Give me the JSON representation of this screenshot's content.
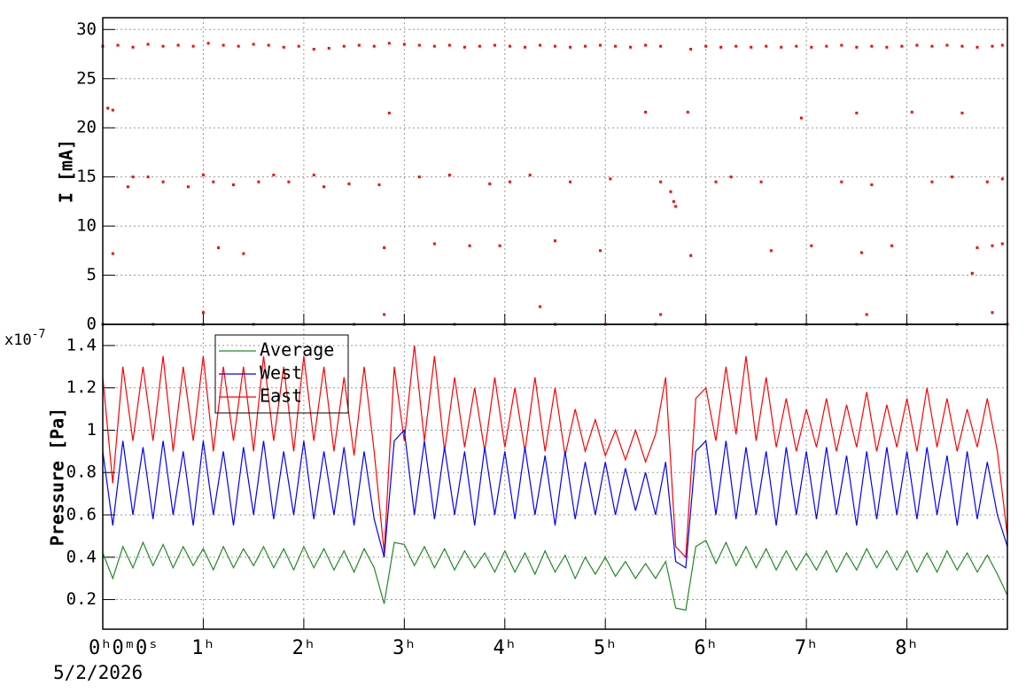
{
  "chart_data": [
    {
      "type": "scatter",
      "ylabel": "I [mA]",
      "xlim": [
        0,
        9
      ],
      "ylim": [
        0,
        31.2
      ],
      "xticks": [
        0,
        1,
        2,
        3,
        4,
        5,
        6,
        7,
        8
      ],
      "yticks": [
        0,
        5,
        10,
        15,
        20,
        25,
        30
      ],
      "grid": true,
      "series": [
        {
          "color": "#ff0000",
          "x": [
            0,
            0.15,
            0.3,
            0.45,
            0.6,
            0.75,
            0.9,
            1.05,
            1.2,
            1.35,
            1.5,
            1.65,
            1.8,
            1.95,
            2.1,
            2.25,
            2.4,
            2.55,
            2.7,
            2.85,
            3,
            3.15,
            3.3,
            3.45,
            3.6,
            3.75,
            3.9,
            4.05,
            4.2,
            4.35,
            4.5,
            4.65,
            4.8,
            4.95,
            5.1,
            5.25,
            5.4,
            5.55,
            5.85,
            6,
            6.15,
            6.3,
            6.45,
            6.6,
            6.75,
            6.9,
            7.05,
            7.2,
            7.35,
            7.5,
            7.65,
            7.8,
            7.95,
            8.1,
            8.25,
            8.4,
            8.55,
            8.7,
            8.85,
            8.95
          ],
          "values": [
            28.3,
            28.4,
            28.2,
            28.5,
            28.3,
            28.4,
            28.3,
            28.6,
            28.4,
            28.3,
            28.5,
            28.4,
            28.2,
            28.3,
            28.0,
            28.1,
            28.3,
            28.4,
            28.3,
            28.6,
            28.5,
            28.4,
            28.3,
            28.4,
            28.2,
            28.3,
            28.4,
            28.3,
            28.2,
            28.4,
            28.3,
            28.2,
            28.3,
            28.4,
            28.3,
            28.2,
            28.4,
            28.3,
            28.0,
            28.3,
            28.2,
            28.3,
            28.2,
            28.3,
            28.2,
            28.3,
            28.2,
            28.3,
            28.4,
            28.2,
            28.3,
            28.2,
            28.3,
            28.4,
            28.3,
            28.4,
            28.3,
            28.2,
            28.3,
            28.4
          ]
        },
        {
          "color": "#ff0000",
          "x": [
            0.05,
            0.1,
            0.1,
            0.25,
            0.3,
            0.45,
            0.6,
            0.85,
            1.0,
            1.1,
            1.15,
            1.3,
            1.4,
            1.55,
            1.7,
            1.85,
            2.1,
            2.2,
            2.45,
            2.75,
            2.8,
            2.85,
            3.15,
            3.3,
            3.45,
            3.65,
            3.85,
            3.95,
            4.05,
            4.25,
            4.5,
            4.65,
            4.95,
            5.05,
            5.4,
            5.55,
            5.65,
            5.68,
            5.7,
            5.82,
            5.85,
            6.1,
            6.25,
            6.55,
            6.65,
            6.95,
            7.05,
            7.35,
            7.5,
            7.55,
            7.65,
            7.85,
            8.05,
            8.25,
            8.45,
            8.55,
            8.65,
            8.7,
            8.8,
            8.85,
            8.95,
            8.95,
            1.0,
            2.8,
            4.35,
            5.55,
            7.6,
            8.85
          ],
          "values": [
            22,
            21.8,
            7.2,
            14,
            15,
            15,
            14.5,
            14,
            15.2,
            14.5,
            7.8,
            14.2,
            7.2,
            14.5,
            15.2,
            14.5,
            15.2,
            14,
            14.3,
            14.2,
            7.8,
            21.5,
            15,
            8.2,
            15.2,
            8,
            14.3,
            8,
            14.5,
            15.2,
            8.5,
            14.5,
            7.5,
            14.8,
            21.6,
            14.5,
            13.5,
            12.5,
            12,
            21.6,
            7,
            14.5,
            15,
            14.5,
            7.5,
            21,
            8,
            14.5,
            21.5,
            7.3,
            14.2,
            8,
            21.6,
            14.5,
            15,
            21.5,
            5.2,
            7.8,
            14.5,
            8,
            8.2,
            14.8,
            1.2,
            1,
            1.8,
            1,
            1,
            1.2
          ]
        },
        {
          "color": "#ff0000",
          "x": [
            0,
            0.5,
            1,
            1.5,
            2,
            2.5,
            3,
            3.5,
            4,
            4.5,
            5,
            5.5,
            6,
            6.5,
            7,
            7.5,
            8,
            8.5,
            9
          ],
          "values": [
            0,
            0,
            0,
            0,
            0,
            0,
            0,
            0,
            0,
            0,
            0,
            0,
            0,
            0,
            0,
            0,
            0,
            0,
            0
          ]
        }
      ]
    },
    {
      "type": "line",
      "ylabel": "Pressure [Pa]",
      "y_multiplier": {
        "base": "x10",
        "exponent": "-7"
      },
      "x_date": "5/2/2026",
      "xlim": [
        0,
        9
      ],
      "ylim": [
        0.06,
        1.5
      ],
      "xticks": [
        {
          "value": 0,
          "label": "0ʰ0ᵐ0ˢ"
        },
        {
          "value": 1,
          "label": "1ʰ"
        },
        {
          "value": 2,
          "label": "2ʰ"
        },
        {
          "value": 3,
          "label": "3ʰ"
        },
        {
          "value": 4,
          "label": "4ʰ"
        },
        {
          "value": 5,
          "label": "5ʰ"
        },
        {
          "value": 6,
          "label": "6ʰ"
        },
        {
          "value": 7,
          "label": "7ʰ"
        },
        {
          "value": 8,
          "label": "8ʰ"
        }
      ],
      "yticks": [
        0.2,
        0.4,
        0.6,
        0.8,
        1,
        1.2,
        1.4
      ],
      "grid": true,
      "legend": "top-left",
      "x": [
        0,
        0.1,
        0.2,
        0.3,
        0.4,
        0.5,
        0.6,
        0.7,
        0.8,
        0.9,
        1,
        1.1,
        1.2,
        1.3,
        1.4,
        1.5,
        1.6,
        1.7,
        1.8,
        1.9,
        2,
        2.1,
        2.2,
        2.3,
        2.4,
        2.5,
        2.6,
        2.7,
        2.8,
        2.9,
        3,
        3.1,
        3.2,
        3.3,
        3.4,
        3.5,
        3.6,
        3.7,
        3.8,
        3.9,
        4,
        4.1,
        4.2,
        4.3,
        4.4,
        4.5,
        4.6,
        4.7,
        4.8,
        4.9,
        5,
        5.1,
        5.2,
        5.3,
        5.4,
        5.5,
        5.6,
        5.7,
        5.8,
        5.9,
        6,
        6.1,
        6.2,
        6.3,
        6.4,
        6.5,
        6.6,
        6.7,
        6.8,
        6.9,
        7,
        7.1,
        7.2,
        7.3,
        7.4,
        7.5,
        7.6,
        7.7,
        7.8,
        7.9,
        8,
        8.1,
        8.2,
        8.3,
        8.4,
        8.5,
        8.6,
        8.7,
        8.8,
        8.9,
        9
      ],
      "series": [
        {
          "name": "East",
          "color": "#ff0000",
          "values": [
            1.25,
            0.75,
            1.3,
            0.95,
            1.3,
            0.95,
            1.35,
            0.9,
            1.3,
            0.95,
            1.35,
            0.9,
            1.3,
            0.95,
            1.3,
            0.9,
            1.35,
            0.95,
            1.3,
            0.9,
            1.35,
            0.95,
            1.3,
            0.9,
            1.25,
            0.88,
            1.3,
            0.9,
            0.42,
            1.3,
            0.95,
            1.4,
            0.95,
            1.35,
            0.9,
            1.25,
            0.92,
            1.2,
            0.9,
            1.25,
            0.92,
            1.2,
            0.9,
            1.25,
            0.9,
            1.2,
            0.88,
            1.1,
            0.9,
            1.05,
            0.88,
            1.0,
            0.86,
            1.0,
            0.85,
            0.98,
            1.25,
            0.45,
            0.4,
            1.15,
            1.2,
            0.95,
            1.3,
            0.98,
            1.35,
            0.95,
            1.25,
            0.92,
            1.15,
            0.9,
            1.1,
            0.92,
            1.15,
            0.9,
            1.12,
            0.92,
            1.18,
            0.9,
            1.12,
            0.92,
            1.15,
            0.9,
            1.2,
            0.92,
            1.15,
            0.9,
            1.1,
            0.92,
            1.15,
            0.9,
            0.5
          ]
        },
        {
          "name": "West",
          "color": "#0000ff",
          "values": [
            0.9,
            0.55,
            0.95,
            0.6,
            0.92,
            0.58,
            0.95,
            0.6,
            0.9,
            0.55,
            0.95,
            0.6,
            0.9,
            0.55,
            0.92,
            0.6,
            0.95,
            0.58,
            0.9,
            0.6,
            0.95,
            0.58,
            0.9,
            0.6,
            0.92,
            0.55,
            0.9,
            0.58,
            0.4,
            0.95,
            1.0,
            0.6,
            0.95,
            0.58,
            0.92,
            0.6,
            0.9,
            0.55,
            0.92,
            0.6,
            0.9,
            0.58,
            0.92,
            0.6,
            0.88,
            0.55,
            0.9,
            0.58,
            0.85,
            0.6,
            0.85,
            0.6,
            0.82,
            0.62,
            0.8,
            0.6,
            0.85,
            0.38,
            0.35,
            0.9,
            0.95,
            0.6,
            0.95,
            0.58,
            0.92,
            0.6,
            0.9,
            0.55,
            0.92,
            0.6,
            0.9,
            0.58,
            0.92,
            0.6,
            0.88,
            0.55,
            0.9,
            0.58,
            0.92,
            0.6,
            0.9,
            0.58,
            0.92,
            0.6,
            0.88,
            0.55,
            0.9,
            0.58,
            0.85,
            0.6,
            0.45
          ]
        },
        {
          "name": "Average",
          "color": "#228b22",
          "values": [
            0.42,
            0.3,
            0.45,
            0.35,
            0.47,
            0.36,
            0.46,
            0.35,
            0.45,
            0.36,
            0.44,
            0.34,
            0.45,
            0.35,
            0.44,
            0.36,
            0.45,
            0.35,
            0.44,
            0.34,
            0.45,
            0.35,
            0.44,
            0.34,
            0.43,
            0.33,
            0.44,
            0.35,
            0.18,
            0.47,
            0.46,
            0.36,
            0.45,
            0.35,
            0.44,
            0.34,
            0.43,
            0.35,
            0.42,
            0.33,
            0.43,
            0.33,
            0.42,
            0.32,
            0.43,
            0.33,
            0.41,
            0.3,
            0.4,
            0.32,
            0.4,
            0.31,
            0.38,
            0.3,
            0.37,
            0.3,
            0.38,
            0.16,
            0.15,
            0.45,
            0.48,
            0.37,
            0.47,
            0.36,
            0.45,
            0.35,
            0.44,
            0.34,
            0.43,
            0.34,
            0.42,
            0.34,
            0.43,
            0.33,
            0.42,
            0.34,
            0.44,
            0.35,
            0.43,
            0.34,
            0.43,
            0.33,
            0.42,
            0.33,
            0.43,
            0.34,
            0.42,
            0.33,
            0.41,
            0.32,
            0.22
          ]
        }
      ]
    }
  ]
}
